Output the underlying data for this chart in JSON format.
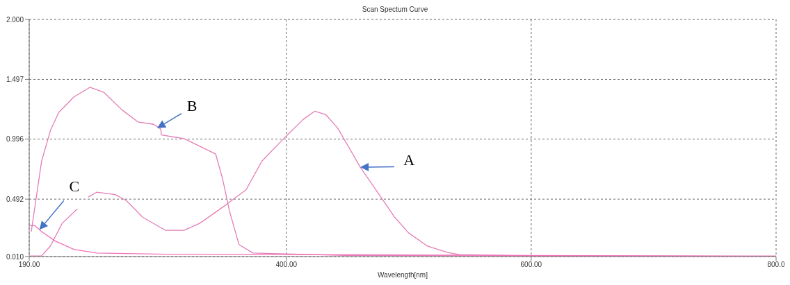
{
  "chart_data": {
    "type": "line",
    "title": "Scan Spectum Curve",
    "xlabel": "Wavelength[nm]",
    "xlim": [
      190,
      800
    ],
    "xticks": [
      {
        "value": 190,
        "label": "190.00"
      },
      {
        "value": 400,
        "label": "400.00"
      },
      {
        "value": 600,
        "label": "600.00"
      },
      {
        "value": 800,
        "label": "800.0"
      }
    ],
    "ylim": [
      0.01,
      2.0
    ],
    "yticks": [
      {
        "value": 0.01,
        "label": "0.010"
      },
      {
        "value": 0.492,
        "label": "0.492"
      },
      {
        "value": 0.996,
        "label": "0.996"
      },
      {
        "value": 1.497,
        "label": "1.497"
      },
      {
        "value": 2.0,
        "label": "2.000"
      }
    ],
    "grid": true,
    "marker": "none",
    "line_style": "solid",
    "series": [
      {
        "color": "#e47db5",
        "x": [
          190.6,
          200.1,
          207.4,
          217,
          229.3,
          233,
          238.3,
          245.1,
          260.3,
          269.3,
          282.7,
          301.3,
          316.5,
          329.4,
          350.2,
          359.2,
          367.1,
          380,
          396.9,
          400.8,
          413.7,
          423.3,
          432.3,
          441.8,
          447.5,
          460.4,
          477.2,
          488.5,
          499.7,
          514.9,
          531.8,
          541.3,
          600,
          800
        ],
        "values": [
          0.015,
          0.015,
          0.1,
          0.29,
          0.41,
          null,
          0.51,
          0.55,
          0.53,
          0.48,
          0.34,
          0.23,
          0.23,
          0.29,
          0.44,
          0.51,
          0.57,
          0.81,
          0.99,
          1.03,
          1.16,
          1.23,
          1.2,
          1.09,
          0.99,
          0.76,
          0.51,
          0.34,
          0.21,
          0.1,
          0.044,
          0.027,
          0.015,
          0.015
        ]
      },
      {
        "color": "#e47db5",
        "x": [
          191.7,
          200.1,
          207.4,
          214.2,
          226.5,
          239.5,
          250.7,
          265.9,
          278.8,
          291.7,
          297.4,
          298,
          316.5,
          342.3,
          348,
          353.6,
          361.4,
          372.7,
          447,
          800
        ],
        "values": [
          0.22,
          0.81,
          1.07,
          1.22,
          1.35,
          1.43,
          1.39,
          1.24,
          1.14,
          1.12,
          1.08,
          1.03,
          1.0,
          0.87,
          0.66,
          0.39,
          0.11,
          0.04,
          0.02,
          0.01
        ]
      },
      {
        "color": "#f070b8",
        "x": [
          190.2,
          194.5,
          200.1,
          211.3,
          226.5,
          245.1,
          301.3,
          600,
          800
        ],
        "values": [
          0.27,
          0.27,
          0.22,
          0.14,
          0.07,
          0.04,
          0.03,
          0.02,
          0.01
        ]
      }
    ],
    "annotations": [
      {
        "text": "A",
        "x": 460.4,
        "y": 0.76
      },
      {
        "text": "B",
        "x": 294.5,
        "y": 1.088
      },
      {
        "text": "C",
        "x": 198.4,
        "y": 0.235
      }
    ]
  }
}
